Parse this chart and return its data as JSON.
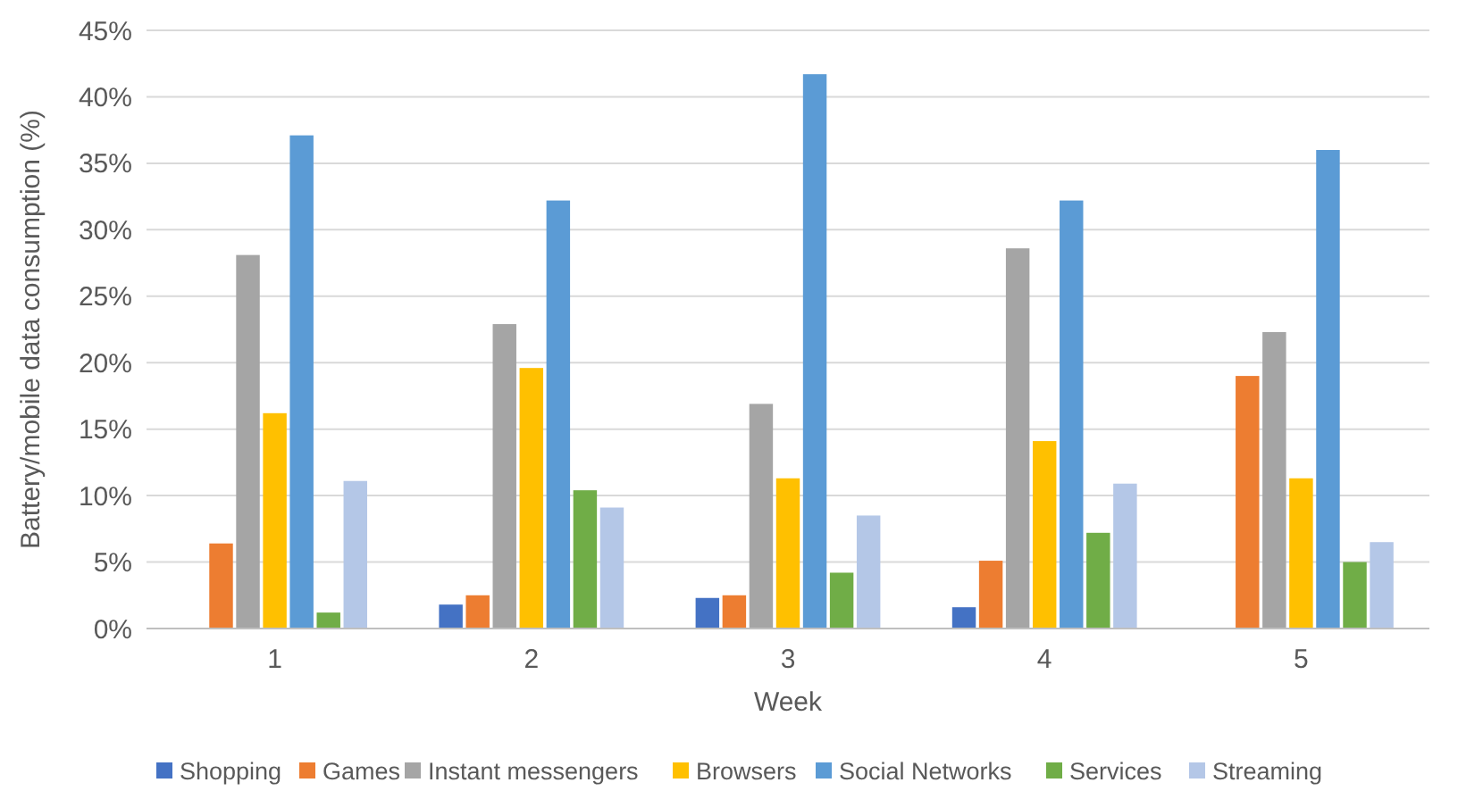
{
  "chart_data": {
    "type": "bar",
    "xlabel": "Week",
    "ylabel": "Battery/mobile data consumption (%)",
    "categories": [
      "1",
      "2",
      "3",
      "4",
      "5"
    ],
    "series": [
      {
        "name": "Shopping",
        "color": "#4472c4",
        "values": [
          0,
          1.8,
          2.3,
          1.6,
          0
        ]
      },
      {
        "name": "Games",
        "color": "#ed7d31",
        "values": [
          6.4,
          2.5,
          2.5,
          5.1,
          19.0
        ]
      },
      {
        "name": "Instant messengers",
        "color": "#a5a5a5",
        "values": [
          28.1,
          22.9,
          16.9,
          28.6,
          22.3
        ]
      },
      {
        "name": "Browsers",
        "color": "#ffc000",
        "values": [
          16.2,
          19.6,
          11.3,
          14.1,
          11.3
        ]
      },
      {
        "name": "Social Networks",
        "color": "#5b9bd5",
        "values": [
          37.1,
          32.2,
          41.7,
          32.2,
          36.0
        ]
      },
      {
        "name": "Services",
        "color": "#70ad47",
        "values": [
          1.2,
          10.4,
          4.2,
          7.2,
          5.0
        ]
      },
      {
        "name": "Streaming",
        "color": "#b4c7e7",
        "values": [
          11.1,
          9.1,
          8.5,
          10.9,
          6.5
        ]
      }
    ],
    "ylim": [
      0,
      45
    ],
    "yticks": [
      {
        "value": 0,
        "label": "0%"
      },
      {
        "value": 5,
        "label": "5%"
      },
      {
        "value": 10,
        "label": "10%"
      },
      {
        "value": 15,
        "label": "15%"
      },
      {
        "value": 20,
        "label": "20%"
      },
      {
        "value": 25,
        "label": "25%"
      },
      {
        "value": 30,
        "label": "30%"
      },
      {
        "value": 35,
        "label": "35%"
      },
      {
        "value": 40,
        "label": "40%"
      },
      {
        "value": 45,
        "label": "45%"
      }
    ],
    "grid": "y",
    "legend": "bottom"
  }
}
